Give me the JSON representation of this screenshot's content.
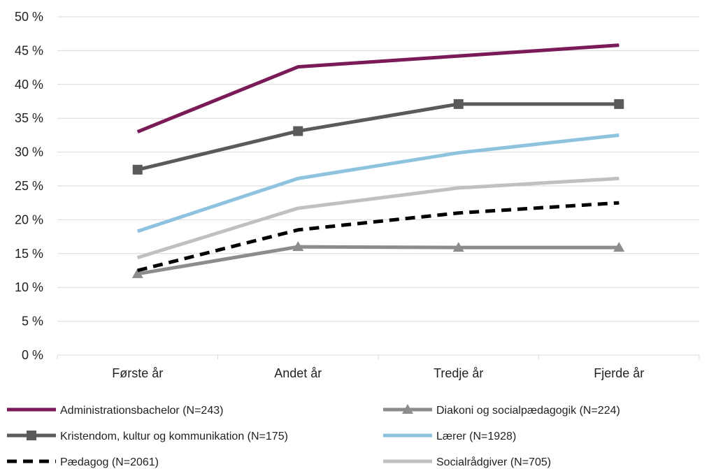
{
  "chart_data": {
    "type": "line",
    "categories": [
      "Første år",
      "Andet år",
      "Tredje år",
      "Fjerde år"
    ],
    "yticks": [
      "0 %",
      "5 %",
      "10 %",
      "15 %",
      "20 %",
      "25 %",
      "30 %",
      "35 %",
      "40 %",
      "45 %",
      "50 %"
    ],
    "ylim": [
      0,
      50
    ],
    "grid": true,
    "legend_position": "bottom",
    "series": [
      {
        "name": "Administrationsbachelor (N=243)",
        "color": "#7a1a57",
        "dash": "solid",
        "marker": "none",
        "values": [
          33.0,
          42.6,
          44.2,
          45.8
        ]
      },
      {
        "name": "Diakoni og socialpædagogik (N=224)",
        "color": "#8c8c8c",
        "dash": "solid",
        "marker": "triangle",
        "values": [
          12.0,
          16.0,
          15.9,
          15.9
        ]
      },
      {
        "name": "Kristendom, kultur og kommunikation (N=175)",
        "color": "#5a5a5a",
        "dash": "solid",
        "marker": "square",
        "values": [
          27.4,
          33.1,
          37.1,
          37.1
        ]
      },
      {
        "name": "Lærer (N=1928)",
        "color": "#8ec3e0",
        "dash": "solid",
        "marker": "none",
        "values": [
          18.3,
          26.1,
          29.9,
          32.5
        ]
      },
      {
        "name": "Pædagog (N=2061)",
        "color": "#000000",
        "dash": "dashed",
        "marker": "none",
        "values": [
          12.5,
          18.5,
          21.0,
          22.5
        ]
      },
      {
        "name": "Socialrådgiver (N=705)",
        "color": "#c0c0c0",
        "dash": "solid",
        "marker": "none",
        "values": [
          14.4,
          21.7,
          24.7,
          26.1
        ]
      }
    ]
  }
}
